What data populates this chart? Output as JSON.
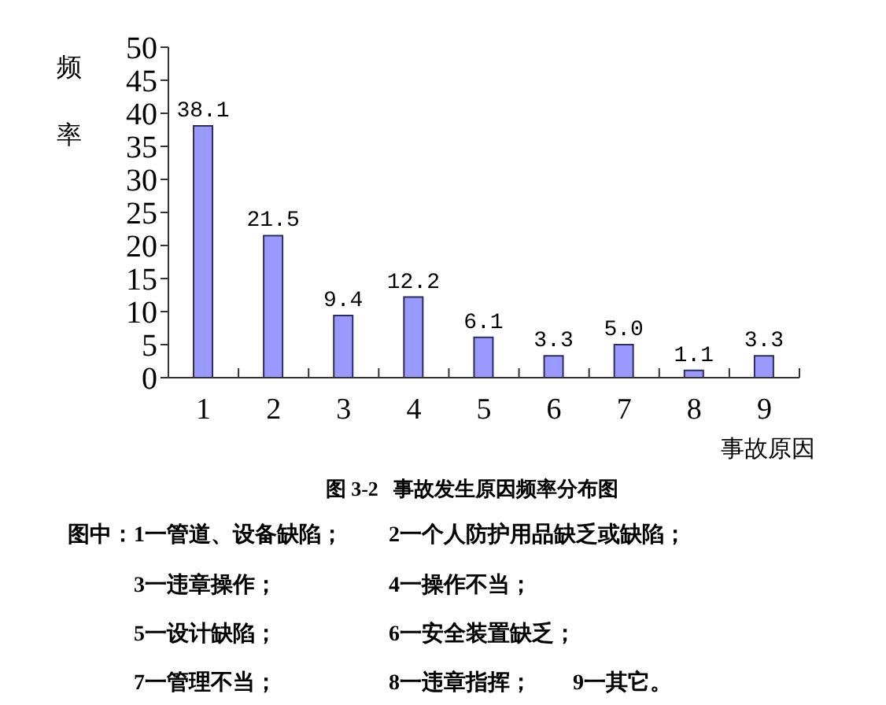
{
  "chart_data": {
    "type": "bar",
    "title": "图 3-2   事故发生原因频率分布图",
    "xlabel": "事故原因",
    "ylabel": "频率",
    "categories": [
      "1",
      "2",
      "3",
      "4",
      "5",
      "6",
      "7",
      "8",
      "9"
    ],
    "values": [
      38.1,
      21.5,
      9.4,
      12.2,
      6.1,
      3.3,
      5.0,
      1.1,
      3.3
    ],
    "value_labels": [
      "38.1",
      "21.5",
      "9.4",
      "12.2",
      "6.1",
      "3.3",
      "5.0",
      "1.1",
      "3.3"
    ],
    "color": "#9999ff",
    "ylim": [
      0,
      50
    ],
    "yticks": [
      0,
      5,
      10,
      15,
      20,
      25,
      30,
      35,
      40,
      45,
      50
    ],
    "annotations": [
      "图中：1一管道、设备缺陷；",
      "2一个人防护用品缺乏或缺陷；",
      "3一违章操作；",
      "4一操作不当；",
      "5一设计缺陷；",
      "6一安全装置缺乏；",
      "7一管理不当；",
      "8一违章指挥；",
      "9一其它。"
    ]
  }
}
